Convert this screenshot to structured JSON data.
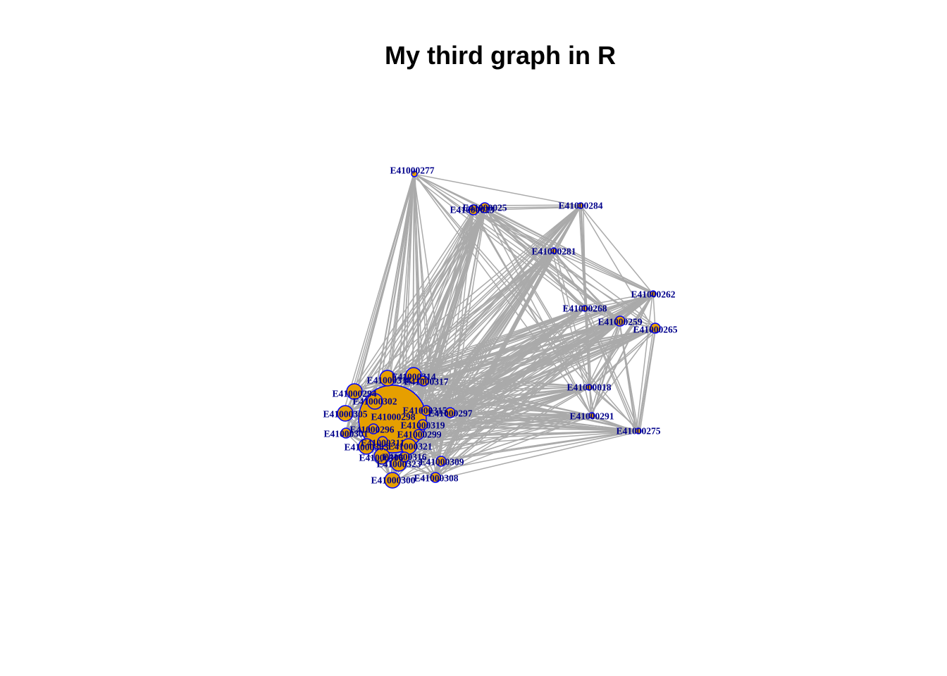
{
  "title": "My third graph in R",
  "colors": {
    "edge": "#aaaaaa",
    "node_fill": "#e69f00",
    "node_border": "#0000ff",
    "label": "#00008b",
    "background": "#ffffff"
  },
  "nodes": [
    {
      "id": "E41000277",
      "label": "E41000277",
      "size": "tiny"
    },
    {
      "id": "E41000025",
      "label": "E41000025",
      "size": "small"
    },
    {
      "id": "E41000023",
      "label": "E41000023",
      "size": "small"
    },
    {
      "id": "E41000284",
      "label": "E41000284",
      "size": "tiny"
    },
    {
      "id": "E41000281",
      "label": "E41000281",
      "size": "tiny"
    },
    {
      "id": "E41000262",
      "label": "E41000262",
      "size": "tiny"
    },
    {
      "id": "E41000268",
      "label": "E41000268",
      "size": "tiny"
    },
    {
      "id": "E41000259",
      "label": "E41000259",
      "size": "small"
    },
    {
      "id": "E41000265",
      "label": "E41000265",
      "size": "small"
    },
    {
      "id": "E41000018",
      "label": "E41000018",
      "size": "tiny"
    },
    {
      "id": "E41000291",
      "label": "E41000291",
      "size": "tiny"
    },
    {
      "id": "E41000275",
      "label": "E41000275",
      "size": "tiny"
    },
    {
      "id": "E41000314",
      "label": "E41000314",
      "size": "medium"
    },
    {
      "id": "E41000317",
      "label": "E41000317",
      "size": "small"
    },
    {
      "id": "E41000318",
      "label": "E41000318",
      "size": "medium"
    },
    {
      "id": "E41000294",
      "label": "E41000294",
      "size": "medium"
    },
    {
      "id": "E41000302",
      "label": "E41000302",
      "size": "medium"
    },
    {
      "id": "E41000305",
      "label": "E41000305",
      "size": "medium"
    },
    {
      "id": "E41000298",
      "label": "E41000298",
      "size": "huge"
    },
    {
      "id": "E41000315",
      "label": "E41000315",
      "size": "small"
    },
    {
      "id": "E41000297",
      "label": "E41000297",
      "size": "small"
    },
    {
      "id": "E41000319",
      "label": "E41000319",
      "size": "small"
    },
    {
      "id": "E41000299",
      "label": "E41000299",
      "size": "small"
    },
    {
      "id": "E41000296",
      "label": "E41000296",
      "size": "small"
    },
    {
      "id": "E41000301",
      "label": "E41000301",
      "size": "small"
    },
    {
      "id": "E41000311",
      "label": "E41000311",
      "size": "small"
    },
    {
      "id": "E41000303",
      "label": "E41000303",
      "size": "medium"
    },
    {
      "id": "E41000321",
      "label": "E41000321",
      "size": "medium"
    },
    {
      "id": "E41000306",
      "label": "E41000306",
      "size": "medium"
    },
    {
      "id": "E41000316",
      "label": "E41000316",
      "size": "small"
    },
    {
      "id": "E41000323",
      "label": "E41000323",
      "size": "medium"
    },
    {
      "id": "E41000309",
      "label": "E41000309",
      "size": "small"
    },
    {
      "id": "E41000300",
      "label": "E41000300",
      "size": "medium"
    },
    {
      "id": "E41000308",
      "label": "E41000308",
      "size": "small"
    }
  ]
}
